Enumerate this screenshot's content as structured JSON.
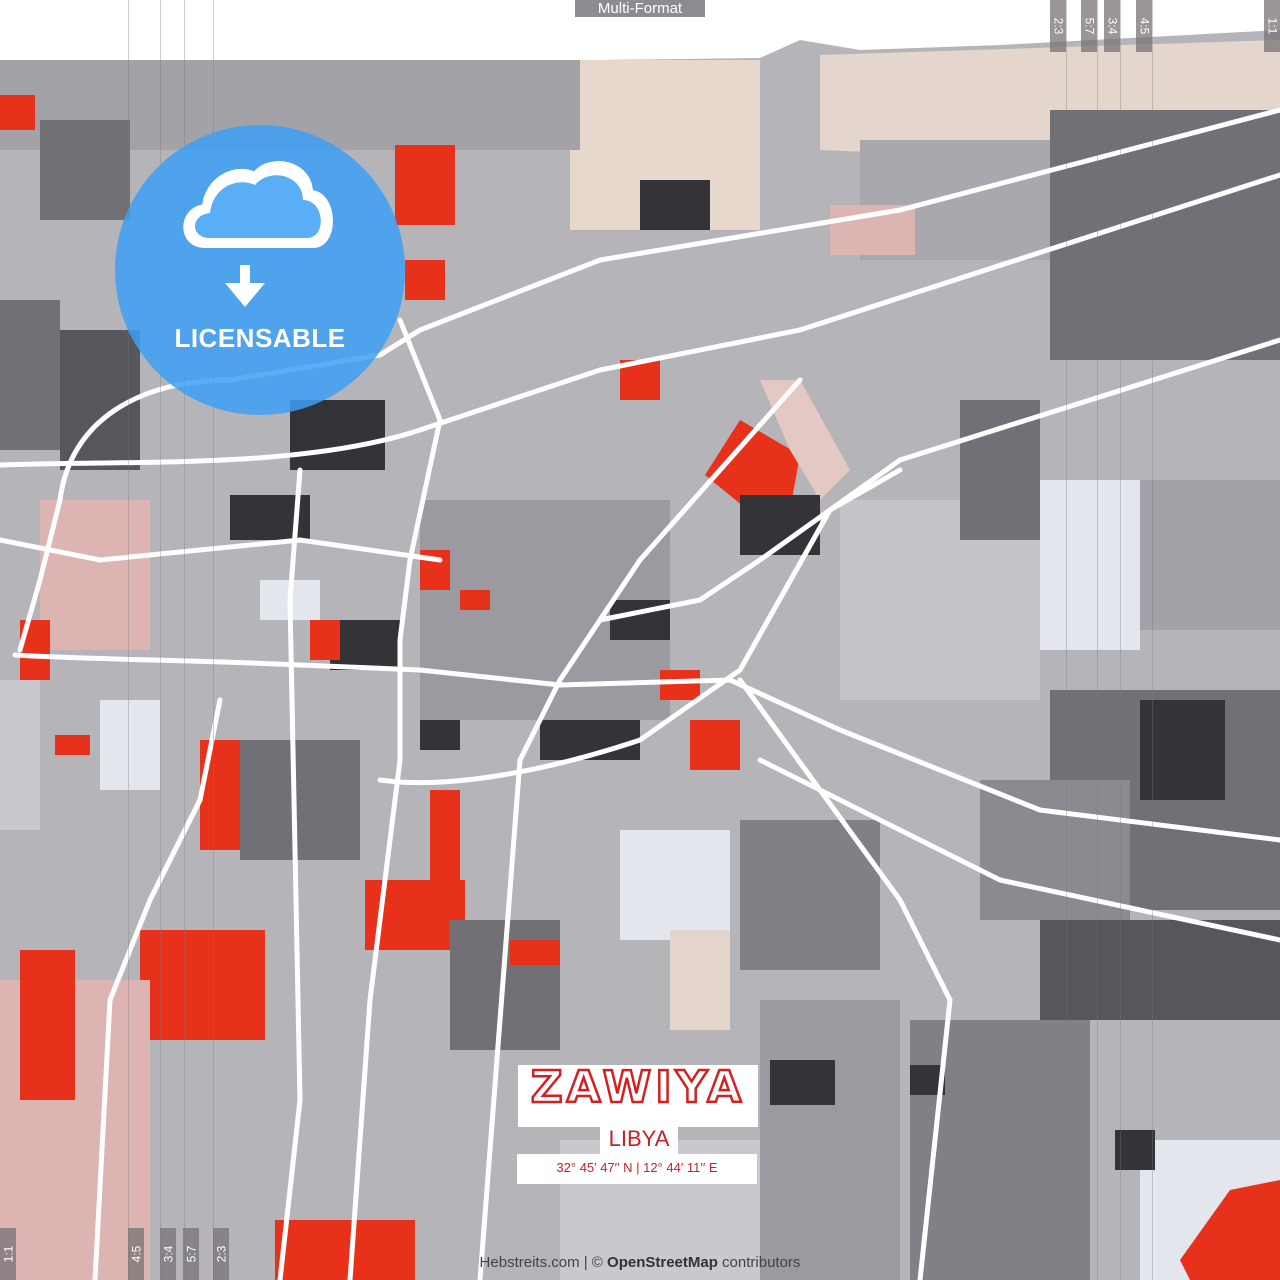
{
  "header": {
    "format_label": "Multi-Format"
  },
  "ratios_top": [
    "2:3",
    "5:7",
    "3:4",
    "4:5",
    "1:1"
  ],
  "ratios_bottom": [
    "1:1",
    "4:5",
    "3:4",
    "5:7",
    "2:3"
  ],
  "badge": {
    "label": "LICENSABLE",
    "icon": "cloud-download-icon",
    "color": "#3ca0f5"
  },
  "poster": {
    "city": "ZAWIYA",
    "country": "LIBYA",
    "coordinates": "32°  45′  47′′ N  |  12°  44′  11′′ E",
    "accent_color": "#d42020"
  },
  "attribution": {
    "site": "Hebstreits.com",
    "separator": " | © ",
    "osm": "OpenStreetMap",
    "suffix": " contributors"
  },
  "palette": {
    "red": "#e8311a",
    "dark": "#333338",
    "mid": "#707076",
    "gray": "#a2a2a8",
    "light": "#c8c8cd",
    "pale": "#e4e6ee",
    "pink": "#dcb4b2",
    "beige": "#e4d6cc"
  }
}
